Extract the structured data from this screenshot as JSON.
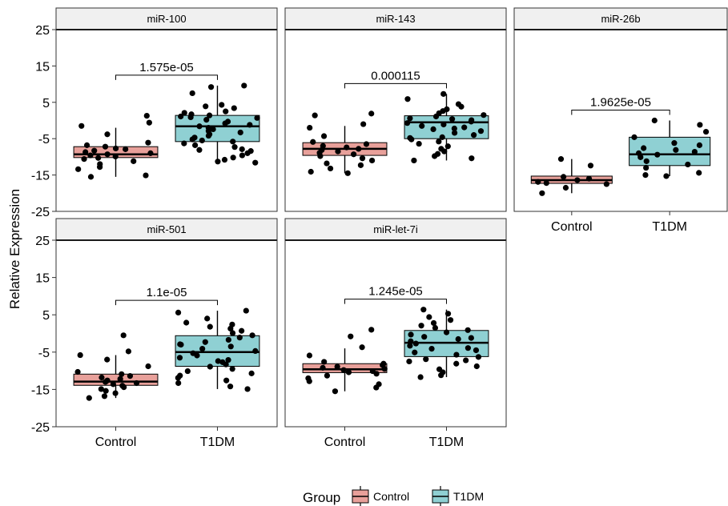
{
  "chart_data": {
    "type": "box",
    "ylabel": "Relative Expression",
    "xlabel": "",
    "ylim": [
      -25,
      25
    ],
    "yticks": [
      25,
      15,
      5,
      -5,
      -15,
      -25
    ],
    "categories": [
      "Control",
      "T1DM"
    ],
    "legend": {
      "title": "Group",
      "position": "bottom",
      "entries": [
        {
          "label": "Control",
          "fill": "#E8A09A"
        },
        {
          "label": "T1DM",
          "fill": "#8FD0D3"
        }
      ]
    },
    "panels": [
      {
        "title": "miR-100",
        "p_value": "1.575e-05",
        "boxes": [
          {
            "group": "Control",
            "min": -15.5,
            "q1": -10.2,
            "median": -9.3,
            "q3": -7.2,
            "max": -2
          },
          {
            "group": "T1DM",
            "min": -11.5,
            "q1": -5.8,
            "median": -1.6,
            "q3": 1.4,
            "max": 9.6
          }
        ],
        "points": {
          "Control": [
            1.3,
            -0.6,
            -1.5,
            -3.8,
            -6.1,
            -6.8,
            -7.2,
            -7.7,
            -7.9,
            -8.3,
            -8.7,
            -9.0,
            -9.3,
            -9.6,
            -9.9,
            -10.3,
            -10.6,
            -11.2,
            -12.0,
            -12.8,
            -13.4,
            -15.1,
            -15.5
          ],
          "T1DM": [
            9.6,
            9.2,
            7.5,
            4.3,
            3.9,
            3.4,
            2.5,
            2.1,
            1.7,
            1.4,
            1.1,
            0.7,
            0.2,
            -0.3,
            -0.8,
            -1.2,
            -1.6,
            -2.0,
            -2.4,
            -2.9,
            -3.3,
            -3.8,
            -4.2,
            -4.7,
            -5.2,
            -5.8,
            -6.3,
            -6.8,
            -7.3,
            -7.9,
            -8.4,
            -9.0,
            -9.6,
            -10.2,
            -10.8,
            -11.3,
            -11.6,
            -8.1,
            -5.5,
            0.9
          ]
        }
      },
      {
        "title": "miR-143",
        "p_value": "0.000115",
        "boxes": [
          {
            "group": "Control",
            "min": -14.5,
            "q1": -9.6,
            "median": -7.8,
            "q3": -6.1,
            "max": -1.5
          },
          {
            "group": "T1DM",
            "min": -11.0,
            "q1": -5.0,
            "median": -0.5,
            "q3": 1.3,
            "max": 7.3
          }
        ],
        "points": {
          "Control": [
            1.4,
            1.9,
            -1.0,
            -2.0,
            -4.3,
            -5.9,
            -6.5,
            -7.0,
            -7.4,
            -7.8,
            -8.1,
            -8.5,
            -8.9,
            -9.3,
            -9.8,
            -10.4,
            -11.0,
            -11.8,
            -12.3,
            -13.2,
            -14.1,
            -14.5
          ],
          "T1DM": [
            7.3,
            5.9,
            4.5,
            3.8,
            3.1,
            2.6,
            2.0,
            1.5,
            1.1,
            0.6,
            0.1,
            -0.3,
            -0.7,
            -1.1,
            -1.5,
            -1.9,
            -2.4,
            -2.9,
            -3.4,
            -4.0,
            -4.6,
            -5.2,
            -5.8,
            -6.4,
            -7.1,
            -7.8,
            -8.5,
            -9.2,
            -9.8,
            -10.4,
            -11.0,
            0.4,
            -2.2,
            -4.8
          ]
        }
      },
      {
        "title": "miR-26b",
        "p_value": "1.9625e-05",
        "boxes": [
          {
            "group": "Control",
            "min": -20.0,
            "q1": -17.3,
            "median": -16.4,
            "q3": -15.3,
            "max": -10.6
          },
          {
            "group": "T1DM",
            "min": -15.3,
            "q1": -12.4,
            "median": -9.3,
            "q3": -4.6,
            "max": 0.0
          }
        ],
        "points": {
          "Control": [
            -10.6,
            -12.4,
            -15.5,
            -16.0,
            -16.4,
            -16.9,
            -17.2,
            -17.5,
            -18.5,
            -20.0
          ],
          "T1DM": [
            0.0,
            -1.2,
            -3.1,
            -4.6,
            -6.8,
            -7.6,
            -8.1,
            -8.6,
            -9.0,
            -9.4,
            -10.1,
            -11.2,
            -12.1,
            -13.0,
            -14.4,
            -15.0,
            -15.3,
            -6.2
          ]
        }
      },
      {
        "title": "miR-501",
        "p_value": "1.1e-05",
        "boxes": [
          {
            "group": "Control",
            "min": -17.3,
            "q1": -13.9,
            "median": -12.9,
            "q3": -10.9,
            "max": -5.8
          },
          {
            "group": "T1DM",
            "min": -14.9,
            "q1": -8.8,
            "median": -5.0,
            "q3": -0.6,
            "max": 6.1
          }
        ],
        "points": {
          "Control": [
            -0.5,
            -4.8,
            -5.8,
            -7.0,
            -8.8,
            -10.3,
            -10.9,
            -11.4,
            -11.8,
            -12.2,
            -12.6,
            -13.0,
            -13.3,
            -13.6,
            -14.0,
            -14.4,
            -14.9,
            -15.4,
            -16.0,
            -16.8,
            -17.3
          ],
          "T1DM": [
            6.1,
            5.6,
            4.0,
            2.9,
            2.4,
            1.8,
            1.3,
            0.7,
            0.1,
            -0.5,
            -1.1,
            -1.7,
            -2.3,
            -2.9,
            -3.5,
            -4.1,
            -4.7,
            -5.3,
            -5.9,
            -6.5,
            -7.1,
            -7.7,
            -8.3,
            -8.9,
            -9.5,
            -10.1,
            -10.7,
            -11.3,
            -11.9,
            -12.6,
            -13.3,
            -14.2,
            -14.9,
            -3.0,
            -7.4
          ]
        }
      },
      {
        "title": "miR-let-7i",
        "p_value": "1.245e-05",
        "boxes": [
          {
            "group": "Control",
            "min": -15.5,
            "q1": -10.5,
            "median": -9.6,
            "q3": -8.1,
            "max": -4.0
          },
          {
            "group": "T1DM",
            "min": -11.7,
            "q1": -6.2,
            "median": -2.5,
            "q3": 0.8,
            "max": 6.4
          }
        ],
        "points": {
          "Control": [
            1.0,
            -0.8,
            -3.7,
            -5.9,
            -7.6,
            -8.1,
            -8.5,
            -8.9,
            -9.2,
            -9.5,
            -9.8,
            -10.1,
            -10.4,
            -10.8,
            -11.3,
            -12.0,
            -12.8,
            -13.6,
            -14.5,
            -15.5
          ],
          "T1DM": [
            6.4,
            5.3,
            4.4,
            3.6,
            2.8,
            2.1,
            1.5,
            0.9,
            0.3,
            -0.3,
            -0.9,
            -1.5,
            -2.1,
            -2.7,
            -3.3,
            -3.9,
            -4.5,
            -5.1,
            -5.7,
            -6.3,
            -6.9,
            -7.5,
            -8.1,
            -8.8,
            -9.6,
            -10.4,
            -11.2,
            -11.7,
            -1.2,
            -4.1,
            -7.2
          ]
        }
      }
    ]
  }
}
